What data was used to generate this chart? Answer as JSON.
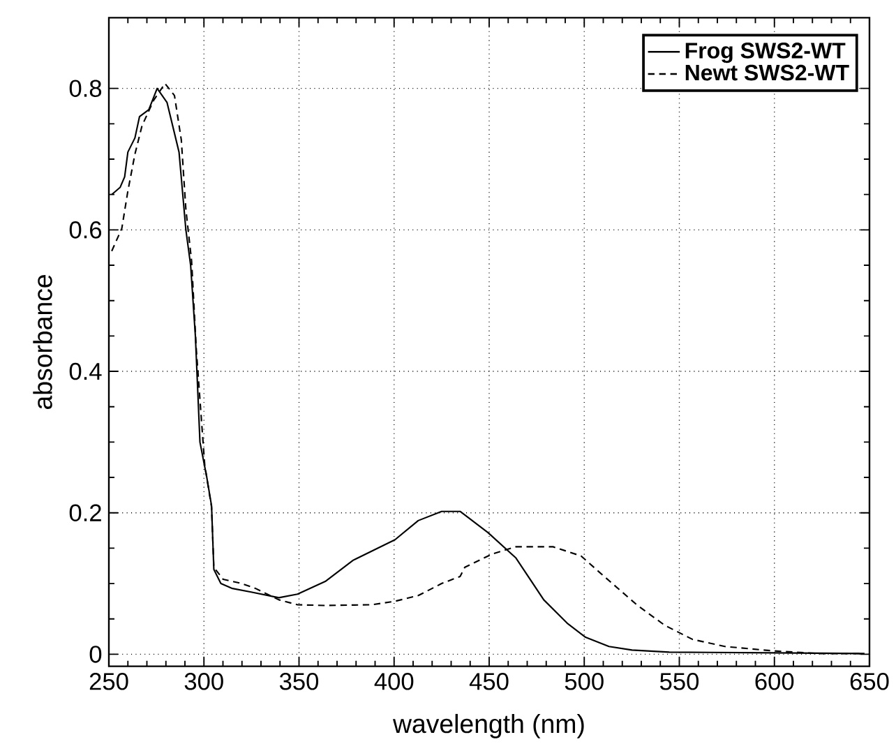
{
  "chart_data": {
    "type": "line",
    "xlabel": "wavelength (nm)",
    "ylabel": "absorbance",
    "xlim": [
      250,
      650
    ],
    "ylim": [
      -0.017,
      0.9
    ],
    "xticks": [
      250,
      300,
      350,
      400,
      450,
      500,
      550,
      600,
      650
    ],
    "yticks": [
      0,
      0.2,
      0.4,
      0.6,
      0.8
    ],
    "grid": true,
    "legend": "top right",
    "series": [
      {
        "name": "Frog SWS2-WT",
        "color": "#000000",
        "line_style": "solid",
        "x": [
          251.5,
          255.9,
          258.3,
          260.0,
          263.7,
          266.1,
          271.0,
          275.4,
          280.6,
          286.9,
          290.5,
          293.0,
          295.5,
          297.9,
          301.5,
          304.0,
          305.2,
          308.9,
          315.0,
          324.8,
          339.4,
          349.2,
          363.8,
          378.5,
          400.5,
          412.7,
          425.0,
          434.7,
          449.4,
          464.1,
          478.7,
          491.0,
          500.7,
          513.0,
          525.1,
          544.7,
          600,
          647.3
        ],
        "values": [
          0.65,
          0.66,
          0.675,
          0.71,
          0.73,
          0.76,
          0.77,
          0.8,
          0.78,
          0.71,
          0.6,
          0.55,
          0.45,
          0.3,
          0.25,
          0.21,
          0.12,
          0.1,
          0.093,
          0.088,
          0.08,
          0.085,
          0.103,
          0.133,
          0.162,
          0.189,
          0.202,
          0.202,
          0.172,
          0.136,
          0.077,
          0.044,
          0.024,
          0.011,
          0.006,
          0.003,
          0.002,
          0.001
        ]
      },
      {
        "name": "Newt SWS2-WT",
        "color": "#000000",
        "line_style": "dashed",
        "x": [
          251.5,
          256.8,
          260.0,
          263.7,
          267.4,
          273.5,
          279.5,
          284.5,
          288.1,
          290.5,
          293.5,
          296.0,
          300.4,
          304.0,
          305.2,
          310.1,
          319.9,
          327.2,
          339.4,
          349.2,
          363.8,
          388.3,
          400.5,
          412.7,
          425.0,
          434.7,
          437.2,
          451.8,
          464.1,
          483.6,
          498.3,
          510.5,
          527.6,
          542.3,
          557.0,
          574.0,
          598.4,
          622.9,
          647.3
        ],
        "values": [
          0.57,
          0.602,
          0.655,
          0.707,
          0.747,
          0.783,
          0.807,
          0.79,
          0.727,
          0.629,
          0.556,
          0.43,
          0.268,
          0.208,
          0.123,
          0.106,
          0.1,
          0.093,
          0.077,
          0.07,
          0.069,
          0.07,
          0.075,
          0.083,
          0.1,
          0.11,
          0.123,
          0.142,
          0.152,
          0.152,
          0.139,
          0.11,
          0.07,
          0.041,
          0.021,
          0.011,
          0.005,
          0.001,
          0.001
        ]
      }
    ]
  }
}
